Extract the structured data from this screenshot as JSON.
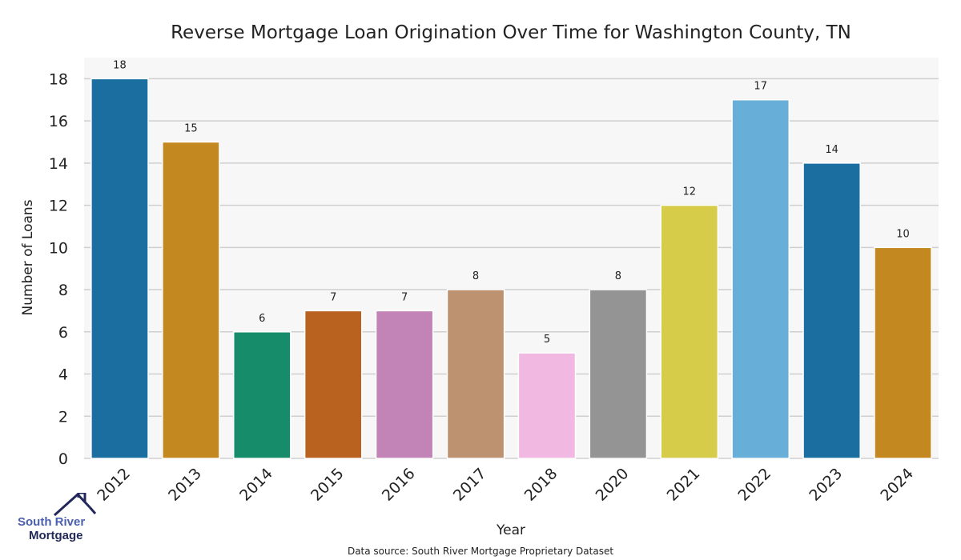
{
  "chart_data": {
    "type": "bar",
    "title": "Reverse Mortgage Loan Origination Over Time for Washington County, TN",
    "xlabel": "Year",
    "ylabel": "Number of Loans",
    "categories": [
      "2012",
      "2013",
      "2014",
      "2015",
      "2016",
      "2017",
      "2018",
      "2020",
      "2021",
      "2022",
      "2023",
      "2024"
    ],
    "values": [
      18,
      15,
      6,
      7,
      7,
      8,
      5,
      8,
      12,
      17,
      14,
      10
    ],
    "colors": [
      "#1a6fa0",
      "#c3881f",
      "#178c6a",
      "#b9611e",
      "#c283b7",
      "#bd9270",
      "#f1b8e1",
      "#949494",
      "#d6cc4a",
      "#67afd8",
      "#1a6fa0",
      "#c3881f"
    ],
    "ylim": [
      0,
      19
    ],
    "yticks": [
      0,
      2,
      4,
      6,
      8,
      10,
      12,
      14,
      16,
      18
    ],
    "grid": true,
    "data_labels": true
  },
  "footer": {
    "source": "Data source: South River Mortgage Proprietary Dataset"
  },
  "logo": {
    "line1": "South River",
    "line2": "Mortgage",
    "icon": "house-icon"
  }
}
